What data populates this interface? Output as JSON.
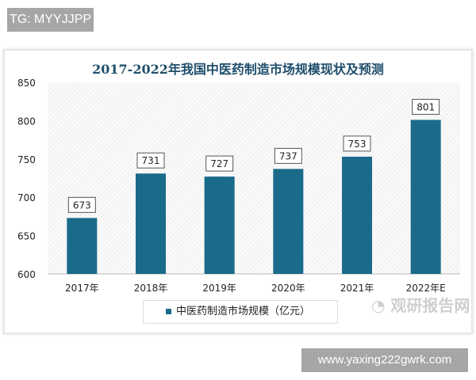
{
  "header": {
    "tag": "TG: MYYJJPP"
  },
  "footer": {
    "site": "www.yaxing222gwrk.com"
  },
  "watermark": {
    "logo_text": "观研报告网"
  },
  "chart_data": {
    "type": "bar",
    "title": "2017-2022年我国中医药制造市场规模现状及预测",
    "categories": [
      "2017年",
      "2018年",
      "2019年",
      "2020年",
      "2021年",
      "2022年E"
    ],
    "series": [
      {
        "name": "中医药制造市场规模（亿元）",
        "values": [
          673,
          731,
          727,
          737,
          753,
          801
        ]
      }
    ],
    "ylim": [
      600,
      850
    ],
    "yticks": [
      600,
      650,
      700,
      750,
      800,
      850
    ],
    "legend": "bottom",
    "grid": false,
    "colors": {
      "bar": "#1a6b8a"
    }
  }
}
